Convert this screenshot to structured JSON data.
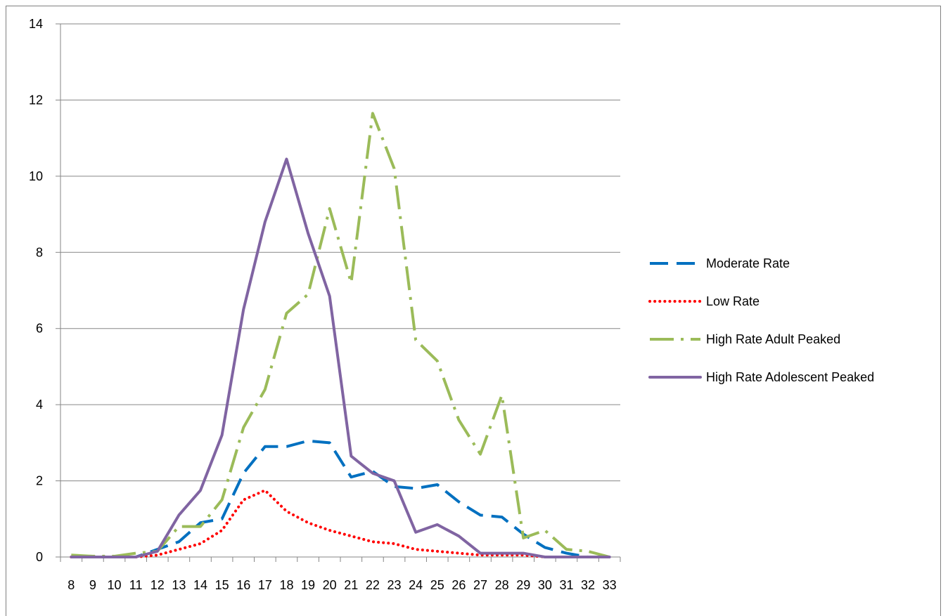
{
  "chart_data": {
    "type": "line",
    "title": "",
    "xlabel": "",
    "ylabel": "",
    "x": [
      8,
      9,
      10,
      11,
      12,
      13,
      14,
      15,
      16,
      17,
      18,
      19,
      20,
      21,
      22,
      23,
      24,
      25,
      26,
      27,
      28,
      29,
      30,
      31,
      32,
      33
    ],
    "ylim": [
      0,
      14
    ],
    "yticks": [
      0,
      2,
      4,
      6,
      8,
      10,
      12,
      14
    ],
    "grid": "horizontal",
    "legend_position": "right",
    "series": [
      {
        "name": "Moderate Rate",
        "color": "#0070C0",
        "style": "dashed",
        "values": [
          0,
          0,
          0,
          0,
          0.2,
          0.4,
          0.9,
          1.0,
          2.2,
          2.9,
          2.9,
          3.05,
          3.0,
          2.1,
          2.25,
          1.85,
          1.8,
          1.9,
          1.45,
          1.1,
          1.05,
          0.6,
          0.25,
          0.1,
          0,
          0
        ]
      },
      {
        "name": "Low Rate",
        "color": "#FF0000",
        "style": "dotted",
        "values": [
          0,
          0,
          0,
          0,
          0.05,
          0.2,
          0.35,
          0.7,
          1.5,
          1.75,
          1.2,
          0.9,
          0.7,
          0.55,
          0.4,
          0.35,
          0.2,
          0.15,
          0.1,
          0.05,
          0.05,
          0.05,
          0,
          0,
          0,
          0
        ]
      },
      {
        "name": "High Rate Adult Peaked",
        "color": "#9BBB59",
        "style": "long-dash-dot",
        "values": [
          0.05,
          0.02,
          0.02,
          0.1,
          0.15,
          0.8,
          0.8,
          1.5,
          3.4,
          4.4,
          6.4,
          6.9,
          9.15,
          7.2,
          11.65,
          10.2,
          5.7,
          5.15,
          3.6,
          2.7,
          4.25,
          0.5,
          0.7,
          0.2,
          0.15,
          0
        ]
      },
      {
        "name": "High Rate Adolescent Peaked",
        "color": "#8064A2",
        "style": "solid",
        "values": [
          0,
          0,
          0,
          0,
          0.15,
          1.1,
          1.75,
          3.2,
          6.5,
          8.8,
          10.45,
          8.5,
          6.85,
          2.65,
          2.2,
          2.0,
          0.65,
          0.85,
          0.55,
          0.1,
          0.1,
          0.1,
          0,
          0,
          0,
          0
        ]
      }
    ]
  }
}
